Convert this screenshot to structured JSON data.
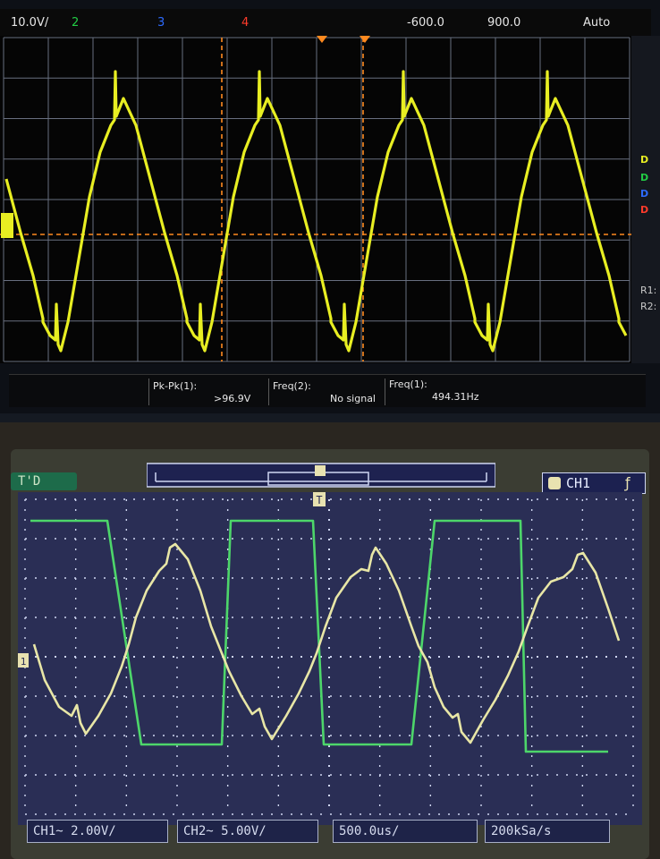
{
  "scope1": {
    "header": {
      "ch1_scale": "10.0V/",
      "ch2_num": "2",
      "ch3_num": "3",
      "ch4_num": "4",
      "time_offset": "-600.0",
      "time_scale": "900.0",
      "trigger_mode": "Auto"
    },
    "side_labels": [
      "D",
      "D",
      "D",
      "D",
      "R1:",
      "R2:"
    ],
    "measurements": [
      {
        "label": "Pk-Pk(1):",
        "value": ">96.9V"
      },
      {
        "label": "Freq(2):",
        "value": "No signal"
      },
      {
        "label": "Freq(1):",
        "value": "494.31Hz"
      }
    ],
    "colors": {
      "ch1": "#e8ee22",
      "ch2": "#22cc44",
      "ch3": "#2d6bff",
      "ch4": "#ff3b2b",
      "cursor": "#ff8a1f",
      "grid": "#8a93a8"
    }
  },
  "scope2": {
    "status_left": "T'D",
    "trigger_marker": "T",
    "trigger_channel": "CH1",
    "ground_marker": "1",
    "bottom": {
      "ch1": "CH1~ 2.00V/",
      "ch2": "CH2~ 5.00V/",
      "timebase": "500.0us/",
      "sample_rate": "200kSa/s"
    },
    "colors": {
      "ch1": "#e8e6a6",
      "ch2": "#4dd66a",
      "grid": "#cfd6f2",
      "screen": "#2a2e55"
    }
  }
}
